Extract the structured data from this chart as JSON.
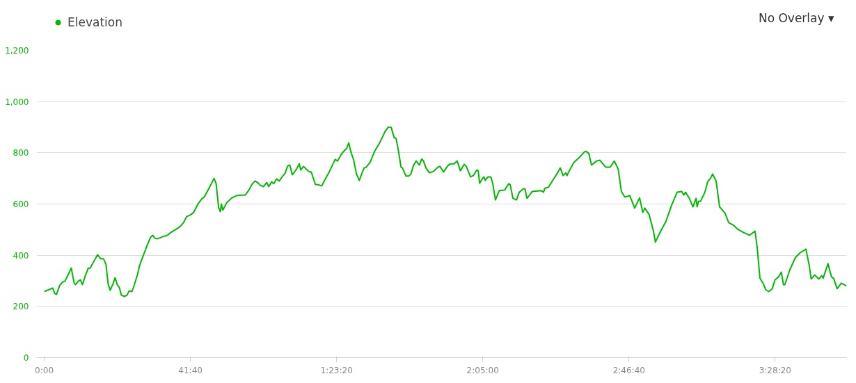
{
  "chart_data": {
    "type": "line",
    "legend": "top left",
    "grid": "y",
    "marker": "none",
    "line_style": "solid",
    "annotations": [
      "No Overlay ▾"
    ],
    "xlim": [
      -2.2,
      228.7
    ],
    "ylim": [
      0,
      1200
    ],
    "xticks": [
      {
        "value": 0,
        "label": "0:00"
      },
      {
        "value": 41.667,
        "label": "41:40"
      },
      {
        "value": 83.333,
        "label": "1:23:20"
      },
      {
        "value": 125,
        "label": "2:05:00"
      },
      {
        "value": 166.667,
        "label": "2:46:40"
      },
      {
        "value": 208.333,
        "label": "3:28:20"
      }
    ],
    "yticks": [
      0,
      200,
      400,
      600,
      800,
      {
        "value": 1000,
        "label": "1,000"
      },
      {
        "value": 1200,
        "label": "1,200"
      }
    ],
    "series": [
      {
        "name": "Elevation",
        "color": "#00b900",
        "x": [
          0,
          2.4,
          3.0,
          3.5,
          4.4,
          5.3,
          5.9,
          7.0,
          7.7,
          8.5,
          8.9,
          9.7,
          10.3,
          10.9,
          11.7,
          12.5,
          13.1,
          14.1,
          15.2,
          16.1,
          16.9,
          17.6,
          18.2,
          18.8,
          19.6,
          20.2,
          20.8,
          21.4,
          22.0,
          22.8,
          23.6,
          24.2,
          25.0,
          25.7,
          26.6,
          27.2,
          28.1,
          29.2,
          30.3,
          30.9,
          31.5,
          32.3,
          33.7,
          35.1,
          36.1,
          37.4,
          38.6,
          39.7,
          40.6,
          41.6,
          42.6,
          43.8,
          45.0,
          45.6,
          46.6,
          47.4,
          48.4,
          49.0,
          49.7,
          50.2,
          50.5,
          50.9,
          52.0,
          53.3,
          53.9,
          54.9,
          57.3,
          58.3,
          59.3,
          60.1,
          60.8,
          61.6,
          62.5,
          63.4,
          64.0,
          64.8,
          65.4,
          66.2,
          67.0,
          67.8,
          68.6,
          69.4,
          70.0,
          70.7,
          71.9,
          72.7,
          73.1,
          73.9,
          75.3,
          76.1,
          77.3,
          77.9,
          79.1,
          79.7,
          81.1,
          82.9,
          83.6,
          84.7,
          85.6,
          86.2,
          86.8,
          87.4,
          88.2,
          89.0,
          89.8,
          90.6,
          91.2,
          91.8,
          92.9,
          94.1,
          95.5,
          97.1,
          98.1,
          98.9,
          99.7,
          100.3,
          100.9,
          101.7,
          102.1,
          103.1,
          103.9,
          104.5,
          105.2,
          106.0,
          106.9,
          107.6,
          108.1,
          108.8,
          109.8,
          111.0,
          112.2,
          112.8,
          113.8,
          115.0,
          115.7,
          116.8,
          117.7,
          118.6,
          119.7,
          120.3,
          121.5,
          122.3,
          123.3,
          123.7,
          124.1,
          124.7,
          125.3,
          125.7,
          126.5,
          127.3,
          127.9,
          128.6,
          129.7,
          131.2,
          132.4,
          132.8,
          133.6,
          134.6,
          135.4,
          136.6,
          137.0,
          137.6,
          138.5,
          139.1,
          141.7,
          142.3,
          142.7,
          143.7,
          144.7,
          146.1,
          147.1,
          147.9,
          148.7,
          149.0,
          149.6,
          151.0,
          152.5,
          154.0,
          154.4,
          155.2,
          156.0,
          157.4,
          158.4,
          160.0,
          161.3,
          162.5,
          163.6,
          164.5,
          165.5,
          166.9,
          168.3,
          169.7,
          170.6,
          171.2,
          172.4,
          173.6,
          174.2,
          175.4,
          177.2,
          178.8,
          180.4,
          181.7,
          182.3,
          182.8,
          183.8,
          184.9,
          185.8,
          186.1,
          186.5,
          187.1,
          188.3,
          189.1,
          189.9,
          190.5,
          191.5,
          192.5,
          194.0,
          195.1,
          196.6,
          197.6,
          199.0,
          201.0,
          202.6,
          203.2,
          204.0,
          205.0,
          205.6,
          206.5,
          207.5,
          208.3,
          209.3,
          210.1,
          210.7,
          211.1,
          212.5,
          214.1,
          215.5,
          217.1,
          218.0,
          218.6,
          219.6,
          220.8,
          221.6,
          222.0,
          223.4,
          224.4,
          225.0,
          226.0,
          227.2,
          228.7
        ],
        "values": [
          258,
          272,
          250,
          247,
          282,
          296,
          299,
          329,
          350,
          293,
          285,
          299,
          304,
          285,
          320,
          348,
          350,
          375,
          402,
          386,
          386,
          364,
          288,
          263,
          288,
          312,
          285,
          274,
          244,
          239,
          244,
          261,
          258,
          285,
          326,
          361,
          394,
          434,
          470,
          478,
          467,
          464,
          472,
          478,
          489,
          500,
          510,
          527,
          551,
          557,
          567,
          600,
          622,
          627,
          652,
          673,
          700,
          679,
          586,
          570,
          600,
          576,
          605,
          622,
          627,
          633,
          635,
          654,
          679,
          690,
          684,
          673,
          668,
          684,
          668,
          687,
          679,
          698,
          690,
          706,
          719,
          749,
          752,
          714,
          736,
          757,
          733,
          747,
          728,
          725,
          676,
          676,
          671,
          687,
          722,
          774,
          768,
          795,
          809,
          817,
          839,
          804,
          771,
          717,
          692,
          722,
          741,
          744,
          763,
          804,
          836,
          882,
          901,
          899,
          861,
          855,
          812,
          744,
          741,
          709,
          709,
          717,
          749,
          768,
          752,
          776,
          768,
          741,
          722,
          728,
          744,
          747,
          725,
          749,
          757,
          757,
          768,
          730,
          755,
          747,
          706,
          711,
          733,
          730,
          681,
          695,
          706,
          692,
          706,
          706,
          676,
          616,
          652,
          654,
          679,
          676,
          622,
          616,
          646,
          660,
          660,
          622,
          638,
          649,
          652,
          646,
          662,
          665,
          687,
          717,
          741,
          711,
          722,
          711,
          728,
          763,
          782,
          804,
          806,
          798,
          752,
          768,
          771,
          744,
          744,
          768,
          736,
          649,
          627,
          633,
          584,
          624,
          567,
          584,
          559,
          497,
          451,
          486,
          532,
          595,
          646,
          649,
          635,
          646,
          624,
          589,
          622,
          589,
          611,
          611,
          646,
          687,
          700,
          717,
          690,
          589,
          565,
          527,
          516,
          502,
          491,
          478,
          494,
          432,
          310,
          288,
          266,
          258,
          269,
          304,
          315,
          334,
          285,
          285,
          342,
          391,
          410,
          424,
          364,
          307,
          323,
          307,
          320,
          310,
          367,
          315,
          310,
          269,
          291,
          280
        ]
      }
    ]
  }
}
